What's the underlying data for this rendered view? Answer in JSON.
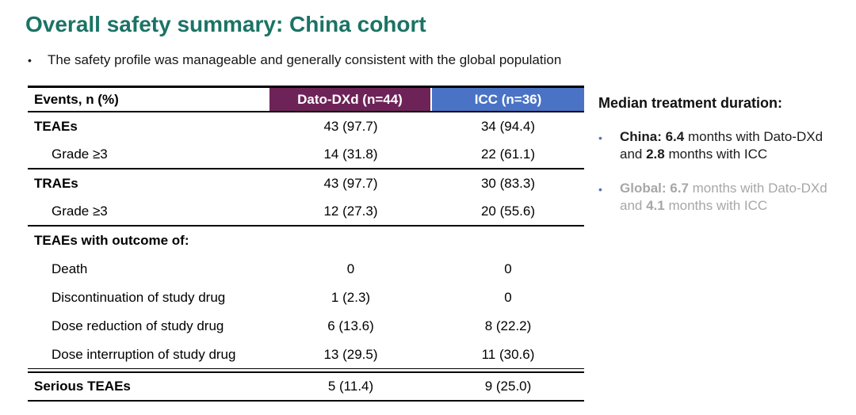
{
  "title": "Overall safety summary: China cohort",
  "intro": {
    "bullet_glyph": "•",
    "text": "The safety profile was manageable and generally consistent with the global population"
  },
  "colors": {
    "title_teal": "#1b7365",
    "dato_header_bg": "#6e2358",
    "icc_header_bg": "#4a73c6",
    "gray_text": "#a7a7a7",
    "sidebar_bullet_blue": "#5b6fb5",
    "table_rule_black": "#000000"
  },
  "table": {
    "columns": [
      {
        "label": "Events, n (%)"
      },
      {
        "label": "Dato-DXd (n=44)"
      },
      {
        "label": "ICC (n=36)"
      }
    ],
    "rows": [
      {
        "label": "TEAEs",
        "dato": "43 (97.7)",
        "icc": "34 (94.4)"
      },
      {
        "label": "Grade ≥3",
        "dato": "14 (31.8)",
        "icc": "22 (61.1)"
      },
      {
        "label": "TRAEs",
        "dato": "43 (97.7)",
        "icc": "30 (83.3)"
      },
      {
        "label": "Grade ≥3",
        "dato": "12 (27.3)",
        "icc": "20 (55.6)"
      },
      {
        "label": "TEAEs with outcome of:",
        "dato": "",
        "icc": ""
      },
      {
        "label": "Death",
        "dato": "0",
        "icc": "0"
      },
      {
        "label": "Discontinuation of study drug",
        "dato": "1 (2.3)",
        "icc": "0"
      },
      {
        "label": "Dose reduction of study drug",
        "dato": "6 (13.6)",
        "icc": "8 (22.2)"
      },
      {
        "label": "Dose interruption of study drug",
        "dato": "13 (29.5)",
        "icc": "11 (30.6)"
      },
      {
        "label": "Serious TEAEs",
        "dato": "5 (11.4)",
        "icc": "9 (25.0)"
      }
    ]
  },
  "sidebar": {
    "heading": "Median treatment duration:",
    "bullet_glyph": "•",
    "bullets": [
      {
        "tone": "dark",
        "segments": [
          {
            "text": "China: 6.4",
            "bold": true
          },
          {
            "text": " months with Dato-DXd and ",
            "bold": false
          },
          {
            "text": "2.8",
            "bold": true
          },
          {
            "text": " months with ICC",
            "bold": false
          }
        ]
      },
      {
        "tone": "gray",
        "segments": [
          {
            "text": "Global: 6.7",
            "bold": true
          },
          {
            "text": " months with Dato-DXd and ",
            "bold": false
          },
          {
            "text": "4.1",
            "bold": true
          },
          {
            "text": " months with ICC",
            "bold": false
          }
        ]
      }
    ]
  }
}
